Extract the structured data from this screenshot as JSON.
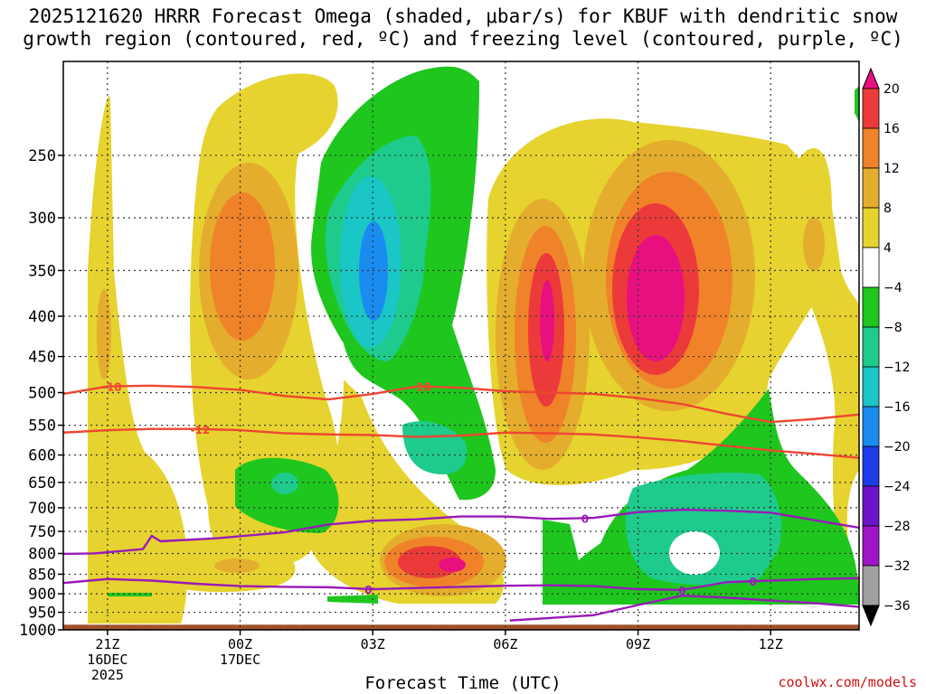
{
  "title": {
    "line1": "2025121620 HRRR Forecast Omega (shaded, μbar/s) for KBUF with dendritic snow",
    "line2": "growth region (contoured, red, ºC) and freezing level (contoured, purple, ºC)"
  },
  "credit": "coolwx.com/models",
  "chart_data": {
    "type": "heatmap",
    "xlabel": "Forecast Time (UTC)",
    "ylabel": "",
    "x_ticks": [
      {
        "hour": 1,
        "lines": [
          "21Z",
          "16DEC",
          "2025"
        ]
      },
      {
        "hour": 4,
        "lines": [
          "00Z",
          "17DEC"
        ]
      },
      {
        "hour": 7,
        "lines": [
          "03Z"
        ]
      },
      {
        "hour": 10,
        "lines": [
          "06Z"
        ]
      },
      {
        "hour": 13,
        "lines": [
          "09Z"
        ]
      },
      {
        "hour": 16,
        "lines": [
          "12Z"
        ]
      }
    ],
    "xlim": [
      0,
      18
    ],
    "y_ticks": [
      250,
      300,
      350,
      400,
      450,
      500,
      550,
      600,
      650,
      700,
      750,
      800,
      850,
      900,
      950,
      1000
    ],
    "ylim_pressure_top": 190,
    "ylim_pressure_bottom": 1000,
    "colorbar": {
      "labels": [
        "20",
        "16",
        "12",
        "8",
        "4",
        "−4",
        "−8",
        "−12",
        "−16",
        "−20",
        "−24",
        "−28",
        "−32",
        "−36"
      ],
      "bins": [
        {
          "range": "> 20",
          "color": "#e8107f"
        },
        {
          "range": "16 to 20",
          "color": "#ec3a3a"
        },
        {
          "range": "12 to 16",
          "color": "#f0822a"
        },
        {
          "range": "8 to 12",
          "color": "#e5ad2d"
        },
        {
          "range": "4 to 8",
          "color": "#e6d32f"
        },
        {
          "range": "-4 to 4",
          "color": "#ffffff"
        },
        {
          "range": "-8 to -4",
          "color": "#1ec61e"
        },
        {
          "range": "-12 to -8",
          "color": "#1ecb8c"
        },
        {
          "range": "-16 to -12",
          "color": "#1ac6c6"
        },
        {
          "range": "-20 to -16",
          "color": "#1a8cf0"
        },
        {
          "range": "-24 to -20",
          "color": "#1e3ce6"
        },
        {
          "range": "-28 to -24",
          "color": "#6e14c8"
        },
        {
          "range": "-32 to -28",
          "color": "#a014c8"
        },
        {
          "range": "-36 to -32",
          "color": "#a0a0a0"
        },
        {
          "range": "< -36",
          "color": "#000000"
        }
      ]
    },
    "ground_color": "#a0522d",
    "contours": {
      "dgz_minus18": {
        "label": "-18",
        "color": "#ef4632",
        "points": [
          [
            0,
            502
          ],
          [
            1,
            491
          ],
          [
            2,
            490
          ],
          [
            3,
            492
          ],
          [
            4,
            496
          ],
          [
            5,
            505
          ],
          [
            6,
            510
          ],
          [
            7,
            502
          ],
          [
            8,
            491
          ],
          [
            9,
            493
          ],
          [
            10,
            498
          ],
          [
            11,
            500
          ],
          [
            12,
            502
          ],
          [
            13,
            508
          ],
          [
            14,
            517
          ],
          [
            15,
            532
          ],
          [
            16,
            545
          ],
          [
            17,
            540
          ],
          [
            18,
            533
          ]
        ]
      },
      "dgz_minus12": {
        "label": "-12",
        "color": "#ef4632",
        "points": [
          [
            0,
            562
          ],
          [
            1,
            558
          ],
          [
            2,
            556
          ],
          [
            3,
            556
          ],
          [
            4,
            558
          ],
          [
            5,
            563
          ],
          [
            6,
            565
          ],
          [
            7,
            566
          ],
          [
            8,
            569
          ],
          [
            9,
            567
          ],
          [
            10,
            562
          ],
          [
            11,
            563
          ],
          [
            12,
            565
          ],
          [
            13,
            570
          ],
          [
            14,
            576
          ],
          [
            15,
            584
          ],
          [
            16,
            592
          ],
          [
            17,
            598
          ],
          [
            18,
            605
          ]
        ]
      },
      "frz_upper": {
        "label": "0",
        "color": "#9a1ab8",
        "points": [
          [
            0,
            801
          ],
          [
            0.7,
            800
          ],
          [
            1.8,
            790
          ],
          [
            2.0,
            760
          ],
          [
            2.2,
            772
          ],
          [
            3.5,
            765
          ],
          [
            5,
            752
          ],
          [
            6,
            735
          ],
          [
            7,
            727
          ],
          [
            8,
            724
          ],
          [
            9,
            718
          ],
          [
            10,
            718
          ],
          [
            11,
            723
          ],
          [
            12,
            721
          ],
          [
            13,
            709
          ],
          [
            14,
            704
          ],
          [
            15,
            706
          ],
          [
            16,
            710
          ],
          [
            17,
            726
          ],
          [
            18,
            742
          ]
        ]
      },
      "frz_lower": {
        "label": "0",
        "color": "#9a1ab8",
        "points": [
          [
            0,
            872
          ],
          [
            1,
            862
          ],
          [
            2,
            866
          ],
          [
            3,
            874
          ],
          [
            4,
            880
          ],
          [
            5,
            882
          ],
          [
            6,
            883
          ],
          [
            7,
            888
          ],
          [
            8,
            885
          ],
          [
            9,
            882
          ],
          [
            10,
            879
          ],
          [
            11,
            878
          ],
          [
            12,
            880
          ],
          [
            13,
            888
          ],
          [
            14,
            890
          ],
          [
            15,
            870
          ],
          [
            16,
            866
          ],
          [
            17,
            862
          ],
          [
            18,
            860
          ]
        ]
      },
      "frz_near_sfc": {
        "label": "0",
        "color": "#9a1ab8",
        "points": [
          [
            10.1,
            973
          ],
          [
            11,
            966
          ],
          [
            12,
            958
          ],
          [
            13,
            930
          ],
          [
            14,
            905
          ],
          [
            15,
            910
          ],
          [
            16,
            918
          ],
          [
            17,
            925
          ],
          [
            18,
            935
          ]
        ]
      }
    }
  }
}
